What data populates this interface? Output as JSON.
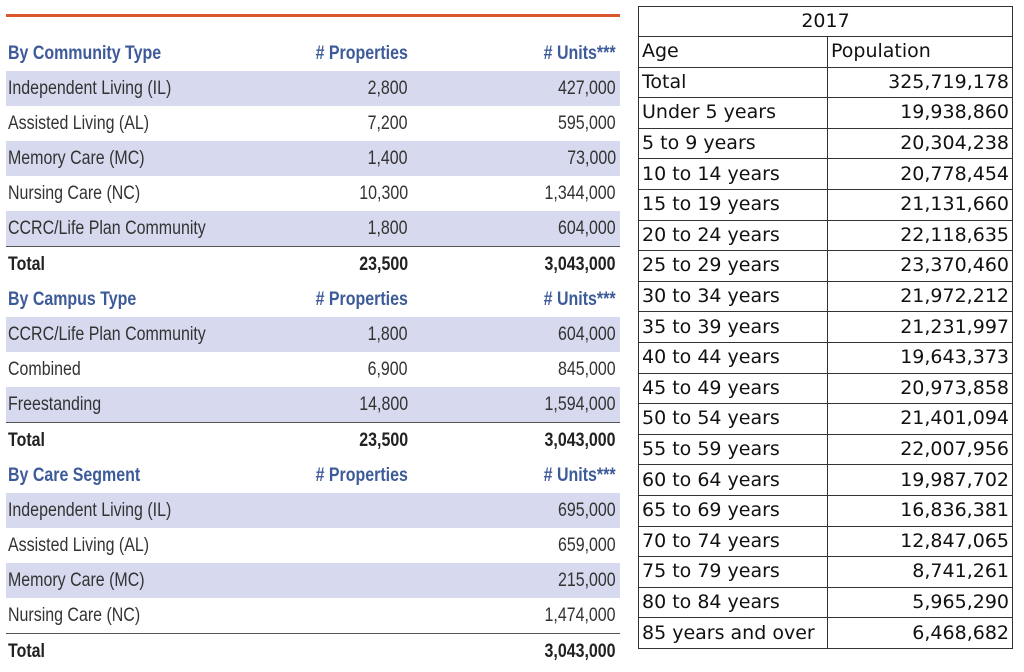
{
  "left_table": {
    "sections": [
      {
        "header": {
          "label": "By Community Type",
          "col_properties": "# Properties",
          "col_units": "# Units***"
        },
        "rows": [
          {
            "label": "Independent Living (IL)",
            "properties": "2,800",
            "units": "427,000"
          },
          {
            "label": "Assisted Living (AL)",
            "properties": "7,200",
            "units": "595,000"
          },
          {
            "label": "Memory Care (MC)",
            "properties": "1,400",
            "units": "73,000"
          },
          {
            "label": "Nursing Care (NC)",
            "properties": "10,300",
            "units": "1,344,000"
          },
          {
            "label": "CCRC/Life Plan Community",
            "properties": "1,800",
            "units": "604,000"
          }
        ],
        "total": {
          "label": "Total",
          "properties": "23,500",
          "units": "3,043,000"
        }
      },
      {
        "header": {
          "label": "By Campus Type",
          "col_properties": "# Properties",
          "col_units": "# Units***"
        },
        "rows": [
          {
            "label": "CCRC/Life Plan Community",
            "properties": "1,800",
            "units": "604,000"
          },
          {
            "label": "Combined",
            "properties": "6,900",
            "units": "845,000"
          },
          {
            "label": "Freestanding",
            "properties": "14,800",
            "units": "1,594,000"
          }
        ],
        "total": {
          "label": "Total",
          "properties": "23,500",
          "units": "3,043,000"
        }
      },
      {
        "header": {
          "label": "By Care Segment",
          "col_properties": "# Properties",
          "col_units": "# Units***"
        },
        "rows": [
          {
            "label": "Independent Living (IL)",
            "properties": "",
            "units": "695,000"
          },
          {
            "label": "Assisted Living (AL)",
            "properties": "",
            "units": "659,000"
          },
          {
            "label": "Memory Care (MC)",
            "properties": "",
            "units": "215,000"
          },
          {
            "label": "Nursing Care (NC)",
            "properties": "",
            "units": "1,474,000"
          }
        ],
        "total": {
          "label": "Total",
          "properties": "",
          "units": "3,043,000"
        }
      }
    ]
  },
  "right_table": {
    "year": "2017",
    "col_age": "Age",
    "col_population": "Population",
    "rows": [
      {
        "age": "Total",
        "population": "325,719,178"
      },
      {
        "age": "Under 5 years",
        "population": "19,938,860"
      },
      {
        "age": "5 to 9 years",
        "population": "20,304,238"
      },
      {
        "age": "10 to 14 years",
        "population": "20,778,454"
      },
      {
        "age": "15 to 19 years",
        "population": "21,131,660"
      },
      {
        "age": "20 to 24 years",
        "population": "22,118,635"
      },
      {
        "age": "25 to 29 years",
        "population": "23,370,460"
      },
      {
        "age": "30 to 34 years",
        "population": "21,972,212"
      },
      {
        "age": "35 to 39 years",
        "population": "21,231,997"
      },
      {
        "age": "40 to 44 years",
        "population": "19,643,373"
      },
      {
        "age": "45 to 49 years",
        "population": "20,973,858"
      },
      {
        "age": "50 to 54 years",
        "population": "21,401,094"
      },
      {
        "age": "55 to 59 years",
        "population": "22,007,956"
      },
      {
        "age": "60 to 64 years",
        "population": "19,987,702"
      },
      {
        "age": "65 to 69 years",
        "population": "16,836,381"
      },
      {
        "age": "70 to 74 years",
        "population": "12,847,065"
      },
      {
        "age": "75 to 79 years",
        "population": "8,741,261"
      },
      {
        "age": "80 to 84 years",
        "population": "5,965,290"
      },
      {
        "age": "85 years and over",
        "population": "6,468,682"
      }
    ]
  }
}
